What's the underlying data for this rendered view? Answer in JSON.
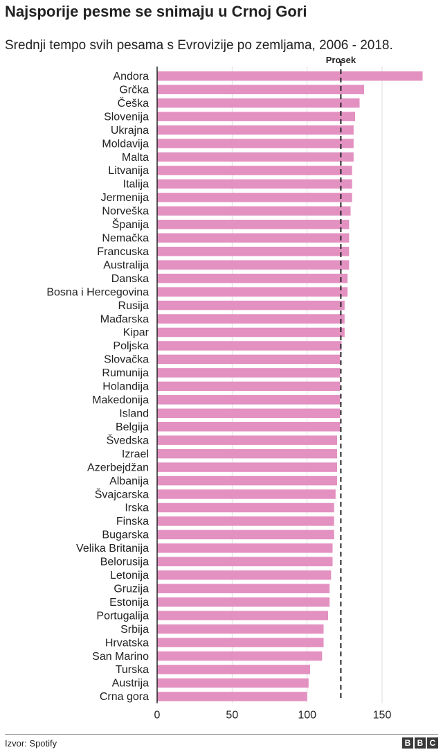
{
  "header": {
    "title": "Najsporije pesme se snimaju u Crnoj Gori",
    "subtitle": "Srednji tempo svih pesama s Evrovizije po zemljama, 2006 - 2018."
  },
  "footer": {
    "source": "Izvor: Spotify",
    "logo_letters": [
      "B",
      "B",
      "C"
    ]
  },
  "chart_data": {
    "type": "bar",
    "orientation": "horizontal",
    "categories": [
      "Andora",
      "Grčka",
      "Češka",
      "Slovenija",
      "Ukrajna",
      "Moldavija",
      "Malta",
      "Litvanija",
      "Italija",
      "Jermenija",
      "Norveška",
      "Španija",
      "Nemačka",
      "Francuska",
      "Australija",
      "Danska",
      "Bosna i Hercegovina",
      "Rusija",
      "Mađarska",
      "Kipar",
      "Poljska",
      "Slovačka",
      "Rumunija",
      "Holandija",
      "Makedonija",
      "Island",
      "Belgija",
      "Švedska",
      "Izrael",
      "Azerbejdžan",
      "Albanija",
      "Švajcarska",
      "Irska",
      "Finska",
      "Bugarska",
      "Velika Britanija",
      "Belorusija",
      "Letonija",
      "Gruzija",
      "Estonija",
      "Portugalija",
      "Srbija",
      "Hrvatska",
      "San Marino",
      "Turska",
      "Austrija",
      "Crna gora"
    ],
    "values": [
      177,
      138,
      135,
      132,
      131,
      131,
      131,
      130,
      130,
      130,
      129,
      128,
      128,
      128,
      128,
      127,
      127,
      125,
      125,
      125,
      123,
      122,
      122,
      122,
      122,
      122,
      122,
      120,
      120,
      120,
      120,
      119,
      118,
      118,
      118,
      117,
      117,
      116,
      115,
      115,
      114,
      111,
      111,
      110,
      102,
      101,
      100
    ],
    "xlim": [
      0,
      180
    ],
    "xticks": [
      0,
      50,
      100,
      150
    ],
    "reference_line": {
      "label": "Prosek",
      "value": 122.5
    },
    "grid": true,
    "bar_color": "#e391c1"
  }
}
